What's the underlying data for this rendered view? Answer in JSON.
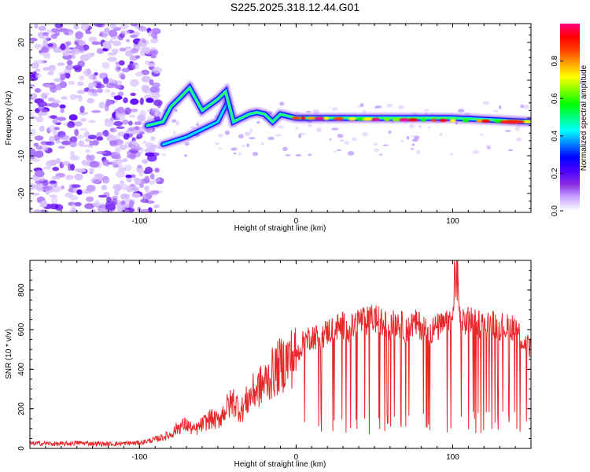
{
  "title": "S225.2025.318.12.44.G01",
  "chart_data": [
    {
      "type": "heatmap",
      "name": "spectrogram",
      "xlabel": "Height of straight line (km)",
      "ylabel": "Frequency (Hz)",
      "xlim": [
        -170,
        150
      ],
      "ylim": [
        -25,
        25
      ],
      "xticks": [
        -100,
        0,
        100
      ],
      "xtick_labels": [
        "-100",
        "0",
        "100"
      ],
      "yticks": [
        20,
        10,
        0,
        -10,
        -20
      ],
      "ytick_labels": [
        "20",
        "10",
        "0",
        "-10",
        "-20"
      ],
      "colorbar": {
        "label": "Normalized spectral amplitude",
        "range": [
          0,
          1
        ],
        "ticks": [
          0.0,
          0.2,
          0.4,
          0.6,
          0.8
        ],
        "tick_labels": [
          "0.0",
          "0.2",
          "0.4",
          "0.6",
          "0.8"
        ],
        "colormap": [
          "#ffffff",
          "#c9a6ff",
          "#8a2be2",
          "#4b00ff",
          "#0000ff",
          "#0080ff",
          "#00ffff",
          "#00ff80",
          "#00ff00",
          "#80ff00",
          "#ffff00",
          "#ffa500",
          "#ff4000",
          "#ff0000",
          "#ff0080"
        ]
      },
      "features": {
        "noise_region_x": [
          -170,
          -95
        ],
        "main_tone": [
          [
            -95,
            -2
          ],
          [
            -85,
            -1
          ],
          [
            -80,
            3
          ],
          [
            -75,
            5
          ],
          [
            -68,
            8
          ],
          [
            -60,
            2
          ],
          [
            -50,
            5
          ],
          [
            -45,
            7
          ],
          [
            -40,
            -1
          ],
          [
            -30,
            1
          ],
          [
            -25,
            1.5
          ],
          [
            -20,
            1
          ],
          [
            -15,
            -1
          ],
          [
            -10,
            1
          ],
          [
            0,
            0
          ],
          [
            50,
            0
          ],
          [
            100,
            0
          ],
          [
            150,
            -1
          ]
        ],
        "secondary_tone": [
          [
            -85,
            -7
          ],
          [
            -70,
            -5
          ],
          [
            -60,
            -3
          ],
          [
            -50,
            -1
          ],
          [
            -44,
            4
          ]
        ]
      }
    },
    {
      "type": "line",
      "name": "snr",
      "xlabel": "Height of straight line (km)",
      "ylabel": "SNR (10 * v/v)",
      "xlim": [
        -170,
        150
      ],
      "ylim": [
        0,
        950
      ],
      "xticks": [
        -100,
        0,
        100
      ],
      "xtick_labels": [
        "-100",
        "0",
        "100"
      ],
      "yticks": [
        0,
        200,
        400,
        600,
        800
      ],
      "ytick_labels": [
        "0",
        "200",
        "400",
        "600",
        "800"
      ],
      "color": "#e8272a",
      "x": [
        -170,
        -160,
        -150,
        -140,
        -130,
        -120,
        -110,
        -100,
        -90,
        -80,
        -75,
        -70,
        -65,
        -60,
        -55,
        -50,
        -45,
        -40,
        -35,
        -30,
        -25,
        -20,
        -15,
        -10,
        -5,
        0,
        5,
        10,
        15,
        20,
        25,
        30,
        35,
        40,
        45,
        50,
        55,
        60,
        65,
        70,
        75,
        80,
        85,
        90,
        95,
        100,
        102,
        105,
        110,
        115,
        120,
        125,
        130,
        135,
        140,
        145,
        150
      ],
      "values": [
        25,
        25,
        22,
        28,
        25,
        22,
        25,
        28,
        45,
        70,
        110,
        120,
        90,
        120,
        150,
        140,
        200,
        240,
        190,
        260,
        300,
        330,
        380,
        420,
        450,
        470,
        540,
        570,
        560,
        590,
        610,
        620,
        600,
        650,
        640,
        660,
        630,
        620,
        640,
        600,
        630,
        620,
        590,
        610,
        620,
        640,
        900,
        620,
        650,
        640,
        620,
        630,
        620,
        610,
        620,
        540,
        500
      ]
    }
  ]
}
